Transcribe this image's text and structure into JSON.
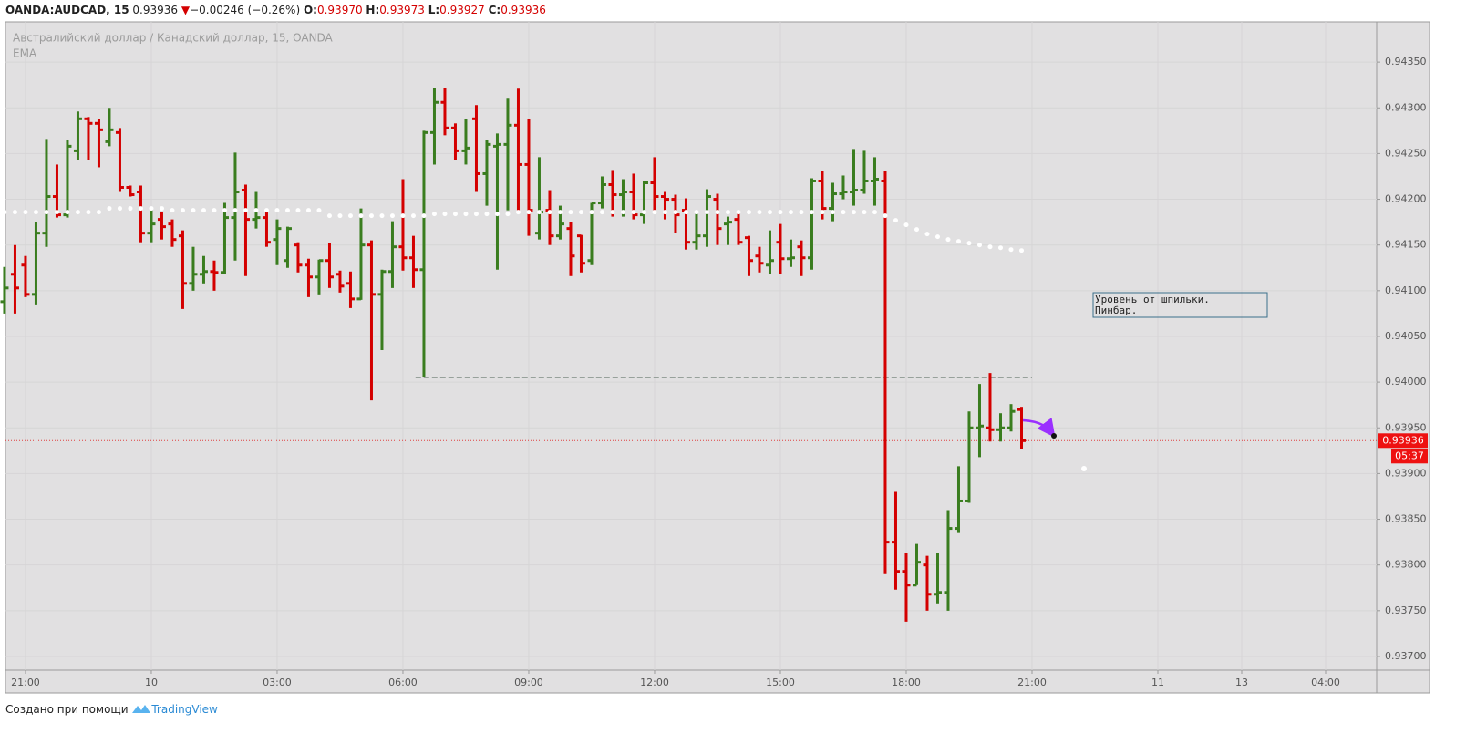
{
  "header": {
    "symbol": "OANDA:AUDCAD, 15",
    "last": "0.93936",
    "arrow": "▼",
    "change": "−0.00246 (−0.26%)",
    "o_label": "O:",
    "o_value": "0.93970",
    "h_label": "H:",
    "h_value": "0.93973",
    "l_label": "L:",
    "l_value": "0.93927",
    "c_label": "C:",
    "c_value": "0.93936"
  },
  "chart_data": {
    "type": "ohlc",
    "title": "Австралийский доллар / Канадский доллар, 15, OANDA",
    "indicator": "EMA",
    "up_color": "#3a7d1f",
    "down_color": "#d40000",
    "ema_color": "#ffffff",
    "open": [
      0.94088,
      0.94118,
      0.94128,
      0.94096,
      0.94163,
      0.94203,
      0.94183,
      0.94253,
      0.94288,
      0.94283,
      0.94263,
      0.94273,
      0.94213,
      0.94208,
      0.94163,
      0.94178,
      0.94173,
      0.9416,
      0.94108,
      0.94118,
      0.94121,
      0.9412,
      0.9418,
      0.9421,
      0.94178,
      0.9418,
      0.94156,
      0.94133,
      0.9415,
      0.94128,
      0.94115,
      0.94133,
      0.94118,
      0.94108,
      0.94091,
      0.9415,
      0.94096,
      0.94121,
      0.94148,
      0.94136,
      0.94123,
      0.94273,
      0.94306,
      0.94278,
      0.94253,
      0.94288,
      0.94228,
      0.94258,
      0.9426,
      0.94281,
      0.94238,
      0.94163,
      0.94188,
      0.9416,
      0.94168,
      0.9416,
      0.94133,
      0.94196,
      0.94216,
      0.94205,
      0.94208,
      0.94183,
      0.94218,
      0.94203,
      0.942,
      0.94188,
      0.94153,
      0.9416,
      0.942,
      0.94173,
      0.94178,
      0.94158,
      0.94138,
      0.94128,
      0.94153,
      0.94135,
      0.94148,
      0.94136,
      0.9422,
      0.9419,
      0.94206,
      0.94208,
      0.9421,
      0.9422,
      0.9422,
      0.93825,
      0.93793,
      0.93778,
      0.938,
      0.93768,
      0.9377,
      0.9384,
      0.9387,
      0.9395,
      0.9395,
      0.93948,
      0.9395,
      0.9397
    ],
    "high": [
      0.94126,
      0.9415,
      0.94138,
      0.94175,
      0.94266,
      0.94238,
      0.94265,
      0.94296,
      0.9429,
      0.94288,
      0.943,
      0.94278,
      0.94215,
      0.94215,
      0.9419,
      0.94186,
      0.94178,
      0.94166,
      0.94148,
      0.94138,
      0.94133,
      0.94196,
      0.94251,
      0.94216,
      0.94208,
      0.94188,
      0.94178,
      0.9417,
      0.94153,
      0.94135,
      0.94134,
      0.94152,
      0.94122,
      0.94121,
      0.9419,
      0.94155,
      0.94123,
      0.94176,
      0.94222,
      0.9416,
      0.94275,
      0.94322,
      0.94322,
      0.94283,
      0.94288,
      0.94303,
      0.94265,
      0.94272,
      0.9431,
      0.94321,
      0.94288,
      0.94246,
      0.9421,
      0.94193,
      0.94175,
      0.94161,
      0.94196,
      0.94225,
      0.94232,
      0.94222,
      0.94228,
      0.9422,
      0.94246,
      0.94208,
      0.94205,
      0.94201,
      0.94186,
      0.94211,
      0.94206,
      0.94181,
      0.94186,
      0.9416,
      0.94148,
      0.94166,
      0.94173,
      0.94156,
      0.94155,
      0.94223,
      0.94231,
      0.94218,
      0.94226,
      0.94255,
      0.94253,
      0.94246,
      0.94231,
      0.9388,
      0.93813,
      0.93823,
      0.9381,
      0.93813,
      0.9386,
      0.93908,
      0.93968,
      0.93998,
      0.9401,
      0.93966,
      0.93976,
      0.93973
    ],
    "low": [
      0.94075,
      0.94075,
      0.94093,
      0.94085,
      0.94148,
      0.9418,
      0.9418,
      0.94243,
      0.94243,
      0.94235,
      0.94258,
      0.94208,
      0.94203,
      0.94153,
      0.94153,
      0.94156,
      0.94148,
      0.9408,
      0.941,
      0.94108,
      0.941,
      0.94118,
      0.94133,
      0.94116,
      0.94168,
      0.94148,
      0.94128,
      0.94125,
      0.9412,
      0.94093,
      0.94095,
      0.94103,
      0.94098,
      0.94081,
      0.9409,
      0.9398,
      0.94035,
      0.94103,
      0.94122,
      0.94103,
      0.94006,
      0.94238,
      0.9427,
      0.94243,
      0.94238,
      0.94208,
      0.94193,
      0.94123,
      0.94188,
      0.94188,
      0.9416,
      0.94156,
      0.9415,
      0.94156,
      0.94116,
      0.9412,
      0.94128,
      0.9419,
      0.94181,
      0.94181,
      0.94178,
      0.94173,
      0.94186,
      0.94178,
      0.94163,
      0.94145,
      0.94145,
      0.94148,
      0.9415,
      0.9415,
      0.9415,
      0.94116,
      0.9412,
      0.94118,
      0.94118,
      0.94126,
      0.94116,
      0.94123,
      0.94178,
      0.94176,
      0.942,
      0.94193,
      0.94206,
      0.94193,
      0.9379,
      0.93773,
      0.93738,
      0.93778,
      0.9375,
      0.93758,
      0.9375,
      0.93835,
      0.93868,
      0.93918,
      0.93935,
      0.93935,
      0.93946,
      0.93927
    ],
    "close": [
      0.94103,
      0.94103,
      0.94096,
      0.94163,
      0.94203,
      0.94183,
      0.94258,
      0.94288,
      0.94283,
      0.94276,
      0.94276,
      0.94213,
      0.94205,
      0.94163,
      0.94173,
      0.9417,
      0.94156,
      0.94108,
      0.94118,
      0.94121,
      0.9412,
      0.9418,
      0.94208,
      0.94178,
      0.9418,
      0.94153,
      0.94168,
      0.94168,
      0.94128,
      0.94115,
      0.94133,
      0.94115,
      0.94105,
      0.94091,
      0.9415,
      0.94096,
      0.94121,
      0.94148,
      0.94136,
      0.94123,
      0.94273,
      0.94306,
      0.94278,
      0.94253,
      0.94256,
      0.94228,
      0.9426,
      0.9426,
      0.94281,
      0.94238,
      0.94188,
      0.94186,
      0.9416,
      0.94173,
      0.94138,
      0.9413,
      0.94196,
      0.94216,
      0.94205,
      0.94208,
      0.94183,
      0.94218,
      0.94203,
      0.942,
      0.94183,
      0.94153,
      0.9416,
      0.94203,
      0.94168,
      0.94175,
      0.94153,
      0.94133,
      0.9413,
      0.94133,
      0.94135,
      0.94136,
      0.94136,
      0.9422,
      0.9419,
      0.94206,
      0.94208,
      0.9421,
      0.9422,
      0.94222,
      0.93825,
      0.93793,
      0.93778,
      0.93803,
      0.93768,
      0.9377,
      0.9384,
      0.9387,
      0.9395,
      0.93952,
      0.93948,
      0.9395,
      0.93968,
      0.93936
    ],
    "ema": [
      0.94186,
      0.94186,
      0.94186,
      0.94186,
      0.94186,
      0.94186,
      0.94186,
      0.94186,
      0.94186,
      0.94186,
      0.9419,
      0.9419,
      0.9419,
      0.9419,
      0.9419,
      0.9419,
      0.94188,
      0.94188,
      0.94188,
      0.94188,
      0.94188,
      0.94188,
      0.94188,
      0.94188,
      0.94188,
      0.94188,
      0.94188,
      0.94188,
      0.94188,
      0.94188,
      0.94188,
      0.94182,
      0.94182,
      0.94182,
      0.94182,
      0.94182,
      0.94182,
      0.94182,
      0.94182,
      0.94182,
      0.94182,
      0.94184,
      0.94184,
      0.94184,
      0.94184,
      0.94184,
      0.94184,
      0.94184,
      0.94184,
      0.94186,
      0.94186,
      0.94186,
      0.94186,
      0.94186,
      0.94186,
      0.94186,
      0.94186,
      0.94186,
      0.94186,
      0.94186,
      0.94186,
      0.94186,
      0.94186,
      0.94186,
      0.94186,
      0.94186,
      0.94186,
      0.94186,
      0.94186,
      0.94186,
      0.94186,
      0.94186,
      0.94186,
      0.94186,
      0.94186,
      0.94186,
      0.94186,
      0.94186,
      0.94186,
      0.94186,
      0.94186,
      0.94186,
      0.94186,
      0.94186,
      0.94182,
      0.94177,
      0.94172,
      0.94167,
      0.94162,
      0.94159,
      0.94156,
      0.94154,
      0.94152,
      0.9415,
      0.94148,
      0.94147,
      0.94145,
      0.94144
    ],
    "last_price": 0.93936,
    "countdown": "05:37",
    "level": 0.94005,
    "annotation": [
      "Уровень от шпильки.",
      "Пинбар."
    ],
    "xlim": [
      0.09,
      130.87
    ],
    "ylim": [
      0.93685,
      0.94394
    ],
    "xticks": [
      {
        "value": 2,
        "label": "21:00"
      },
      {
        "value": 14,
        "label": "10"
      },
      {
        "value": 26,
        "label": "03:00"
      },
      {
        "value": 38,
        "label": "06:00"
      },
      {
        "value": 50,
        "label": "09:00"
      },
      {
        "value": 62,
        "label": "12:00"
      },
      {
        "value": 74,
        "label": "15:00"
      },
      {
        "value": 86,
        "label": "18:00"
      },
      {
        "value": 98,
        "label": "21:00"
      },
      {
        "value": 110,
        "label": "11"
      },
      {
        "value": 118,
        "label": "13"
      },
      {
        "value": 126,
        "label": "04:00"
      }
    ],
    "yticks": [
      {
        "value": 0.937,
        "label": "0.93700"
      },
      {
        "value": 0.9375,
        "label": "0.93750"
      },
      {
        "value": 0.938,
        "label": "0.93800"
      },
      {
        "value": 0.9385,
        "label": "0.93850"
      },
      {
        "value": 0.939,
        "label": "0.93900"
      },
      {
        "value": 0.9395,
        "label": "0.93950"
      },
      {
        "value": 0.94,
        "label": "0.94000"
      },
      {
        "value": 0.9405,
        "label": "0.94050"
      },
      {
        "value": 0.941,
        "label": "0.94100"
      },
      {
        "value": 0.9415,
        "label": "0.94150"
      },
      {
        "value": 0.942,
        "label": "0.94200"
      },
      {
        "value": 0.9425,
        "label": "0.94250"
      },
      {
        "value": 0.943,
        "label": "0.94300"
      },
      {
        "value": 0.9435,
        "label": "0.94350"
      }
    ],
    "grid": true
  },
  "footer": {
    "made_with": "Создано при помощи",
    "brand": "TradingView"
  }
}
